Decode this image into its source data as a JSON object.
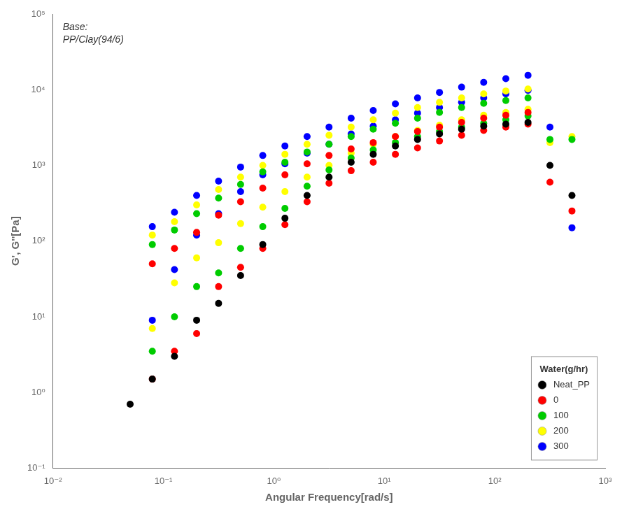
{
  "chart_data": {
    "type": "scatter",
    "xlabel": "Angular Frequency[rad/s]",
    "ylabel": "G', G''[Pa]",
    "annotation": "Base:\nPP/Clay(94/6)",
    "legend_title": "Water(g/hr)",
    "log": true,
    "grid": false,
    "legend": "lower right",
    "marker": "circle",
    "xlim": [
      0.01,
      1000
    ],
    "ylim": [
      0.1,
      100000
    ],
    "xticks": [
      {
        "value": 0.01,
        "label": "10⁻²"
      },
      {
        "value": 0.1,
        "label": "10⁻¹"
      },
      {
        "value": 1,
        "label": "10⁰"
      },
      {
        "value": 10,
        "label": "10¹"
      },
      {
        "value": 100,
        "label": "10²"
      },
      {
        "value": 1000,
        "label": "10³"
      }
    ],
    "yticks": [
      {
        "value": 0.1,
        "label": "10⁻¹"
      },
      {
        "value": 1,
        "label": "10⁰"
      },
      {
        "value": 10,
        "label": "10¹"
      },
      {
        "value": 100,
        "label": "10²"
      },
      {
        "value": 1000,
        "label": "10³"
      },
      {
        "value": 10000,
        "label": "10⁴"
      },
      {
        "value": 100000,
        "label": "10⁵"
      }
    ],
    "series": [
      {
        "name": "Neat_PP",
        "color": "#000000",
        "x": [
          0.05,
          0.0794,
          0.126,
          0.2,
          0.316,
          0.5,
          0.794,
          1.26,
          2.0,
          3.16,
          5.01,
          7.94,
          12.6,
          20.0,
          31.6,
          50.1,
          79.4,
          126.0,
          200.0,
          316.0,
          500.0
        ],
        "values": [
          null,
          null,
          null,
          null,
          null,
          null,
          null,
          null,
          null,
          null,
          null,
          null,
          null,
          null,
          null,
          null,
          null,
          null,
          null,
          null,
          null
        ],
        "loss_values": [
          0.7,
          1.5,
          3.0,
          9.0,
          15.0,
          35.0,
          90.0,
          200.0,
          400.0,
          700.0,
          1100.0,
          1400.0,
          1800.0,
          2200.0,
          2600.0,
          3000.0,
          3300.0,
          3500.0,
          3700.0,
          1000.0,
          400.0
        ]
      },
      {
        "name": "0",
        "color": "#ff0000",
        "x": [
          0.0794,
          0.126,
          0.2,
          0.316,
          0.5,
          0.794,
          1.26,
          2.0,
          3.16,
          5.01,
          7.94,
          12.6,
          20.0,
          31.6,
          50.1,
          79.4,
          126.0,
          200.0,
          316.0,
          500.0
        ],
        "values": [
          50.0,
          80.0,
          130.0,
          220.0,
          330.0,
          500.0,
          750.0,
          1050.0,
          1350.0,
          1650.0,
          2000.0,
          2400.0,
          2800.0,
          3200.0,
          3700.0,
          4200.0,
          4600.0,
          5000.0,
          null,
          null
        ],
        "loss_values": [
          1.5,
          3.5,
          6.0,
          25.0,
          45.0,
          80.0,
          165.0,
          330.0,
          580.0,
          850.0,
          1100.0,
          1400.0,
          1700.0,
          2100.0,
          2500.0,
          2900.0,
          3200.0,
          3500.0,
          600.0,
          250.0
        ]
      },
      {
        "name": "100",
        "color": "#00cc00",
        "x": [
          0.0794,
          0.126,
          0.2,
          0.316,
          0.5,
          0.794,
          1.26,
          2.0,
          3.16,
          5.01,
          7.94,
          12.6,
          20.0,
          31.6,
          50.1,
          79.4,
          126.0,
          200.0,
          316.0,
          500.0
        ],
        "values": [
          90.0,
          140.0,
          230.0,
          370.0,
          560.0,
          820.0,
          1100.0,
          1500.0,
          1900.0,
          2400.0,
          3000.0,
          3600.0,
          4200.0,
          5000.0,
          5800.0,
          6600.0,
          7200.0,
          7800.0,
          null,
          null
        ],
        "loss_values": [
          3.5,
          10.0,
          25.0,
          38.0,
          80.0,
          155.0,
          270.0,
          530.0,
          870.0,
          1250.0,
          1600.0,
          2000.0,
          2400.0,
          2800.0,
          3200.0,
          3600.0,
          4000.0,
          4500.0,
          2200.0,
          2200.0
        ]
      },
      {
        "name": "200",
        "color": "#ffff00",
        "x": [
          0.0794,
          0.126,
          0.2,
          0.316,
          0.5,
          0.794,
          1.26,
          2.0,
          3.16,
          5.01,
          7.94,
          12.6,
          20.0,
          31.6,
          50.1,
          79.4,
          126.0,
          200.0,
          316.0,
          500.0
        ],
        "values": [
          120.0,
          180.0,
          300.0,
          480.0,
          700.0,
          1000.0,
          1400.0,
          1900.0,
          2500.0,
          3200.0,
          4000.0,
          4900.0,
          5800.0,
          6800.0,
          7800.0,
          8800.0,
          9600.0,
          10200.0,
          null,
          null
        ],
        "loss_values": [
          7.0,
          28.0,
          60.0,
          95.0,
          170.0,
          280.0,
          450.0,
          700.0,
          1000.0,
          1450.0,
          1900.0,
          2400.0,
          2900.0,
          3400.0,
          4000.0,
          4600.0,
          5000.0,
          5500.0,
          2000.0,
          2400.0
        ]
      },
      {
        "name": "300",
        "color": "#0000ff",
        "x": [
          0.0794,
          0.126,
          0.2,
          0.316,
          0.5,
          0.794,
          1.26,
          2.0,
          3.16,
          5.01,
          7.94,
          12.6,
          20.0,
          31.6,
          50.1,
          79.4,
          126.0,
          200.0,
          316.0,
          500.0
        ],
        "values": [
          155.0,
          240.0,
          400.0,
          620.0,
          950.0,
          1350.0,
          1800.0,
          2400.0,
          3200.0,
          4200.0,
          5300.0,
          6500.0,
          7800.0,
          9200.0,
          10800.0,
          12500.0,
          14000.0,
          15500.0,
          null,
          null
        ],
        "loss_values": [
          9.0,
          42.0,
          120.0,
          230.0,
          450.0,
          750.0,
          1050.0,
          1450.0,
          1900.0,
          2600.0,
          3300.0,
          4000.0,
          4900.0,
          5800.0,
          6800.0,
          7800.0,
          8800.0,
          9800.0,
          3200.0,
          150.0
        ]
      }
    ]
  }
}
